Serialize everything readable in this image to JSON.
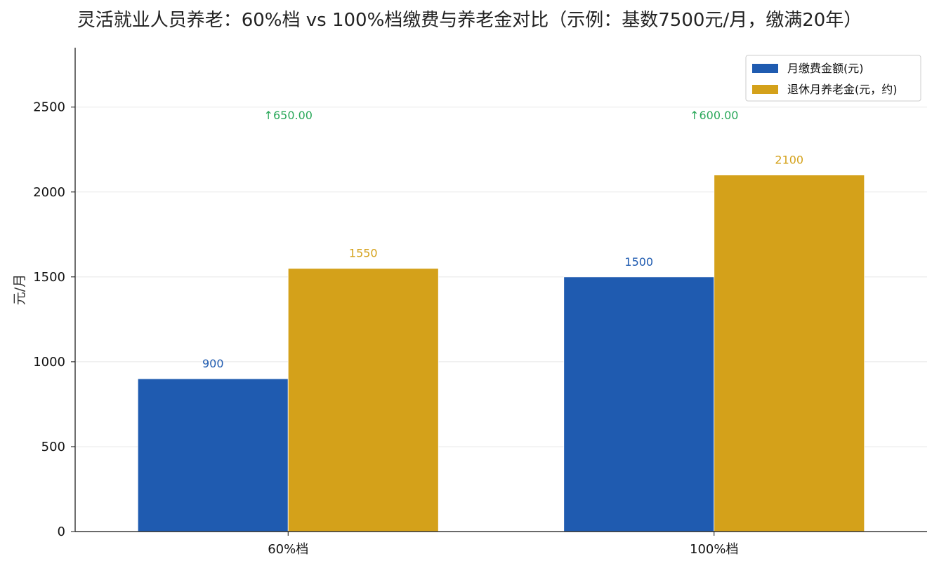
{
  "chart_data": {
    "type": "bar",
    "title": "灵活就业人员养老：60%档 vs 100%档缴费与养老金对比（示例：基数7500元/月，缴满20年）",
    "xlabel": "",
    "ylabel": "元/月",
    "categories": [
      "60%档",
      "100%档"
    ],
    "series": [
      {
        "name": "月缴费金额(元)",
        "values": [
          900,
          1500
        ],
        "color": "#1f5bb0"
      },
      {
        "name": "退休月养老金(元，约)",
        "values": [
          1550,
          2100
        ],
        "color": "#d4a11a"
      }
    ],
    "annotations": [
      "↑650.00",
      "↑600.00"
    ],
    "ylim": [
      0,
      2850
    ],
    "yticks": [
      0,
      500,
      1000,
      1500,
      2000,
      2500
    ],
    "grid": true,
    "legend_position": "top-right"
  }
}
